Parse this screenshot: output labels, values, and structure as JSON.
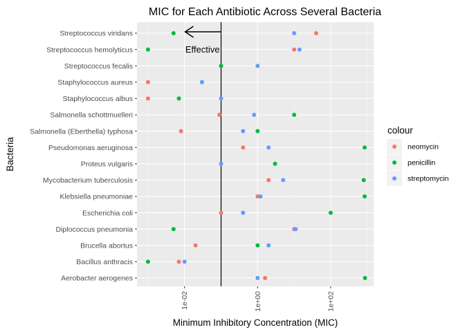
{
  "chart_data": {
    "type": "scatter",
    "title": "MIC for Each Antibiotic Across Several Bacteria",
    "xlabel": "Minimum Inhibitory Concentration (MIC)",
    "ylabel": "Bacteria",
    "x_scale": "log10",
    "xlim": [
      0.0005,
      1500
    ],
    "x_ticks": [
      0.01,
      1,
      100
    ],
    "x_tick_labels": [
      "1e-02",
      "1e+00",
      "1e+02"
    ],
    "grid": true,
    "legend_title": "colour",
    "legend_position": "right",
    "reference_line": 0.1,
    "annotation": "Effective",
    "categories": [
      "Aerobacter aerogenes",
      "Bacillus anthracis",
      "Brucella abortus",
      "Diplococcus pneumonia",
      "Escherichia coli",
      "Klebsiella pneumoniae",
      "Mycobacterium tuberculosis",
      "Proteus vulgaris",
      "Pseudomonas aeruginosa",
      "Salmonella (Eberthella) typhosa",
      "Salmonella schottmuelleri",
      "Staphylococcus albus",
      "Staphylococcus aureus",
      "Streptococcus fecalis",
      "Streptococcus hemolyticus",
      "Streptococcus viridans"
    ],
    "series": [
      {
        "name": "neomycin",
        "color": "#F8766D",
        "values": [
          1.6,
          0.007,
          0.02,
          10,
          0.1,
          1,
          2,
          0.1,
          0.4,
          0.008,
          0.09,
          0.001,
          0.001,
          0.1,
          10,
          40
        ]
      },
      {
        "name": "penicillin",
        "color": "#00BA38",
        "values": [
          870,
          0.001,
          1,
          0.005,
          100,
          850,
          800,
          3,
          850,
          1,
          10,
          0.007,
          0.03,
          0.1,
          0.001,
          0.005
        ]
      },
      {
        "name": "streptomycin",
        "color": "#619CFF",
        "values": [
          1,
          0.01,
          2,
          11,
          0.4,
          1.2,
          5,
          0.1,
          2,
          0.4,
          0.8,
          0.1,
          0.03,
          1,
          14,
          10
        ]
      }
    ]
  }
}
